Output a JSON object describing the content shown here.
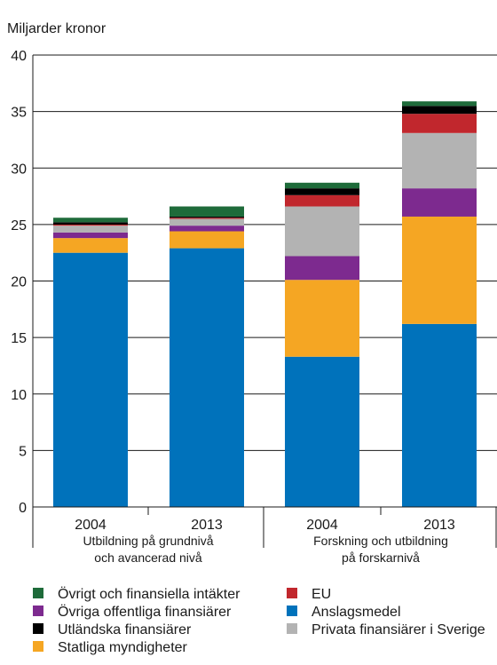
{
  "chart_data": {
    "type": "bar",
    "stacked": true,
    "ylabel": "Miljarder kronor",
    "ylim": [
      0,
      40
    ],
    "yticks": [
      0,
      5,
      10,
      15,
      20,
      25,
      30,
      35,
      40
    ],
    "grid": true,
    "legend_position": "bottom",
    "categories": [
      "2004",
      "2013",
      "2004",
      "2013"
    ],
    "groups": [
      {
        "label_line1": "Utbildning på grundnivå",
        "label_line2": "och avancerad nivå"
      },
      {
        "label_line1": "Forskning och utbildning",
        "label_line2": "på forskarnivå"
      }
    ],
    "series": [
      {
        "name": "Anslagsmedel",
        "color": "#0072bb",
        "values": [
          22.5,
          22.9,
          13.3,
          16.2
        ]
      },
      {
        "name": "Statliga myndigheter",
        "color": "#f5a623",
        "values": [
          1.3,
          1.5,
          6.8,
          9.5
        ]
      },
      {
        "name": "Övriga offentliga finansiärer",
        "color": "#7d2a8f",
        "values": [
          0.5,
          0.5,
          2.1,
          2.5
        ]
      },
      {
        "name": "Privata finansiärer i Sverige",
        "color": "#b3b3b3",
        "values": [
          0.6,
          0.6,
          4.4,
          4.9
        ]
      },
      {
        "name": "EU",
        "color": "#c1272d",
        "values": [
          0.1,
          0.1,
          1.0,
          1.7
        ]
      },
      {
        "name": "Utländska finansiärer",
        "color": "#000000",
        "values": [
          0.2,
          0.1,
          0.6,
          0.7
        ]
      },
      {
        "name": "Övrigt och finansiella intäkter",
        "color": "#1e6b3a",
        "values": [
          0.4,
          0.9,
          0.5,
          0.4
        ]
      }
    ],
    "legend_order": [
      6,
      2,
      5,
      1,
      4,
      0,
      3
    ]
  }
}
